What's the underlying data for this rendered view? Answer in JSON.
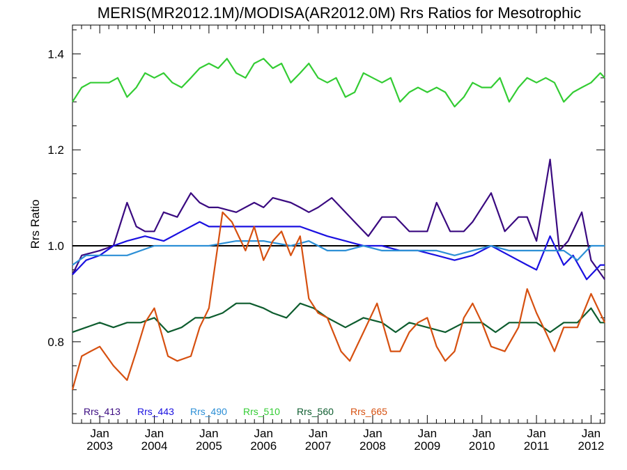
{
  "chart_data": {
    "type": "line",
    "title": "MERIS(MR2012.1M)/MODISA(AR2012.0M)  Rrs Ratios for Mesotrophic",
    "xlabel": "",
    "ylabel": "Rrs Ratio",
    "xlim": [
      2002.5,
      2012.25
    ],
    "ylim": [
      0.63,
      1.46
    ],
    "y_ticks": [
      0.8,
      1.0,
      1.2,
      1.4
    ],
    "y_tick_labels": [
      "0.8",
      "1.0",
      "1.2",
      "1.4"
    ],
    "x_ticks": [
      2003,
      2004,
      2005,
      2006,
      2007,
      2008,
      2009,
      2010,
      2011,
      2012
    ],
    "x_tick_labels": [
      {
        "month": "Jan",
        "year": "2003"
      },
      {
        "month": "Jan",
        "year": "2004"
      },
      {
        "month": "Jan",
        "year": "2005"
      },
      {
        "month": "Jan",
        "year": "2006"
      },
      {
        "month": "Jan",
        "year": "2007"
      },
      {
        "month": "Jan",
        "year": "2008"
      },
      {
        "month": "Jan",
        "year": "2009"
      },
      {
        "month": "Jan",
        "year": "2010"
      },
      {
        "month": "Jan",
        "year": "2011"
      },
      {
        "month": "Jan",
        "year": "2012"
      }
    ],
    "reference_line": 1.0,
    "grid": false,
    "legend_position": "bottom-left",
    "series": [
      {
        "name": "Rrs_413",
        "color": "#3a0a80",
        "x": [
          2002.5,
          2002.67,
          2003.0,
          2003.25,
          2003.5,
          2003.67,
          2003.83,
          2004.0,
          2004.17,
          2004.42,
          2004.67,
          2004.83,
          2005.0,
          2005.17,
          2005.5,
          2005.83,
          2006.0,
          2006.17,
          2006.5,
          2006.67,
          2006.83,
          2007.0,
          2007.25,
          2007.5,
          2007.75,
          2007.92,
          2008.17,
          2008.42,
          2008.67,
          2009.0,
          2009.17,
          2009.42,
          2009.67,
          2009.83,
          2010.17,
          2010.42,
          2010.67,
          2010.83,
          2011.0,
          2011.25,
          2011.42,
          2011.58,
          2011.83,
          2012.0,
          2012.25
        ],
        "values": [
          0.94,
          0.98,
          0.99,
          1.0,
          1.09,
          1.04,
          1.03,
          1.03,
          1.07,
          1.06,
          1.11,
          1.09,
          1.08,
          1.08,
          1.07,
          1.09,
          1.08,
          1.1,
          1.09,
          1.08,
          1.07,
          1.08,
          1.1,
          1.07,
          1.04,
          1.02,
          1.06,
          1.06,
          1.03,
          1.03,
          1.09,
          1.03,
          1.03,
          1.05,
          1.11,
          1.03,
          1.06,
          1.06,
          1.01,
          1.18,
          0.99,
          1.01,
          1.07,
          0.97,
          0.93
        ]
      },
      {
        "name": "Rrs_443",
        "color": "#1a10e0",
        "x": [
          2002.5,
          2002.75,
          2003.0,
          2003.25,
          2003.5,
          2003.83,
          2004.17,
          2004.5,
          2004.83,
          2005.0,
          2005.33,
          2005.67,
          2006.0,
          2006.33,
          2006.67,
          2006.92,
          2007.17,
          2007.5,
          2007.83,
          2008.17,
          2008.5,
          2008.83,
          2009.17,
          2009.5,
          2009.83,
          2010.17,
          2010.5,
          2010.83,
          2011.0,
          2011.25,
          2011.5,
          2011.67,
          2011.92,
          2012.17,
          2012.25
        ],
        "values": [
          0.94,
          0.97,
          0.98,
          1.0,
          1.01,
          1.02,
          1.01,
          1.03,
          1.05,
          1.04,
          1.04,
          1.04,
          1.04,
          1.04,
          1.04,
          1.03,
          1.02,
          1.01,
          1.0,
          1.0,
          0.99,
          0.99,
          0.98,
          0.97,
          0.98,
          1.0,
          0.98,
          0.96,
          0.95,
          1.02,
          0.96,
          0.98,
          0.93,
          0.96,
          0.96
        ]
      },
      {
        "name": "Rrs_490",
        "color": "#2c8fd6",
        "x": [
          2002.5,
          2002.75,
          2003.0,
          2003.5,
          2004.0,
          2004.5,
          2005.0,
          2005.5,
          2006.0,
          2006.5,
          2006.83,
          2007.17,
          2007.5,
          2007.83,
          2008.17,
          2008.5,
          2008.83,
          2009.17,
          2009.5,
          2009.83,
          2010.17,
          2010.5,
          2010.83,
          2011.17,
          2011.5,
          2011.75,
          2012.0,
          2012.25
        ],
        "values": [
          0.96,
          0.98,
          0.98,
          0.98,
          1.0,
          1.0,
          1.0,
          1.01,
          1.01,
          1.0,
          1.01,
          0.99,
          0.99,
          1.0,
          0.99,
          0.99,
          0.99,
          0.99,
          0.98,
          0.99,
          1.0,
          0.99,
          0.99,
          0.99,
          0.99,
          0.97,
          1.0,
          1.0
        ]
      },
      {
        "name": "Rrs_510",
        "color": "#33cc33",
        "x": [
          2002.5,
          2002.67,
          2002.83,
          2003.0,
          2003.17,
          2003.33,
          2003.5,
          2003.67,
          2003.83,
          2004.0,
          2004.17,
          2004.33,
          2004.5,
          2004.67,
          2004.83,
          2005.0,
          2005.17,
          2005.33,
          2005.5,
          2005.67,
          2005.83,
          2006.0,
          2006.17,
          2006.33,
          2006.5,
          2006.67,
          2006.83,
          2007.0,
          2007.17,
          2007.33,
          2007.5,
          2007.67,
          2007.83,
          2008.0,
          2008.17,
          2008.33,
          2008.5,
          2008.67,
          2008.83,
          2009.0,
          2009.17,
          2009.33,
          2009.5,
          2009.67,
          2009.83,
          2010.0,
          2010.17,
          2010.33,
          2010.5,
          2010.67,
          2010.83,
          2011.0,
          2011.17,
          2011.33,
          2011.5,
          2011.67,
          2011.83,
          2012.0,
          2012.17,
          2012.25
        ],
        "values": [
          1.3,
          1.33,
          1.34,
          1.34,
          1.34,
          1.35,
          1.31,
          1.33,
          1.36,
          1.35,
          1.36,
          1.34,
          1.33,
          1.35,
          1.37,
          1.38,
          1.37,
          1.39,
          1.36,
          1.35,
          1.38,
          1.39,
          1.37,
          1.38,
          1.34,
          1.36,
          1.38,
          1.35,
          1.34,
          1.35,
          1.31,
          1.32,
          1.36,
          1.35,
          1.34,
          1.35,
          1.3,
          1.32,
          1.33,
          1.32,
          1.33,
          1.32,
          1.29,
          1.31,
          1.34,
          1.33,
          1.33,
          1.35,
          1.3,
          1.33,
          1.35,
          1.34,
          1.35,
          1.34,
          1.3,
          1.32,
          1.33,
          1.34,
          1.36,
          1.35
        ]
      },
      {
        "name": "Rrs_560",
        "color": "#0d5c2e",
        "x": [
          2002.5,
          2002.75,
          2003.0,
          2003.25,
          2003.5,
          2003.75,
          2004.0,
          2004.25,
          2004.5,
          2004.75,
          2005.0,
          2005.25,
          2005.5,
          2005.75,
          2006.0,
          2006.17,
          2006.42,
          2006.67,
          2006.92,
          2007.17,
          2007.5,
          2007.83,
          2008.17,
          2008.42,
          2008.67,
          2009.0,
          2009.33,
          2009.67,
          2010.0,
          2010.25,
          2010.5,
          2010.75,
          2011.0,
          2011.25,
          2011.5,
          2011.75,
          2012.0,
          2012.17,
          2012.25
        ],
        "values": [
          0.82,
          0.83,
          0.84,
          0.83,
          0.84,
          0.84,
          0.85,
          0.82,
          0.83,
          0.85,
          0.85,
          0.86,
          0.88,
          0.88,
          0.87,
          0.86,
          0.85,
          0.88,
          0.87,
          0.85,
          0.83,
          0.85,
          0.84,
          0.82,
          0.84,
          0.83,
          0.82,
          0.84,
          0.84,
          0.82,
          0.84,
          0.84,
          0.84,
          0.82,
          0.84,
          0.84,
          0.87,
          0.84,
          0.84
        ]
      },
      {
        "name": "Rrs_665",
        "color": "#d65010",
        "x": [
          2002.5,
          2002.67,
          2002.83,
          2003.0,
          2003.25,
          2003.5,
          2003.67,
          2003.83,
          2004.0,
          2004.25,
          2004.42,
          2004.67,
          2004.83,
          2005.0,
          2005.25,
          2005.42,
          2005.67,
          2005.83,
          2006.0,
          2006.17,
          2006.33,
          2006.5,
          2006.67,
          2006.83,
          2007.0,
          2007.17,
          2007.42,
          2007.58,
          2007.83,
          2008.08,
          2008.33,
          2008.5,
          2008.67,
          2008.83,
          2009.0,
          2009.17,
          2009.33,
          2009.5,
          2009.67,
          2009.83,
          2010.0,
          2010.17,
          2010.42,
          2010.67,
          2010.83,
          2011.0,
          2011.17,
          2011.33,
          2011.5,
          2011.75,
          2012.0,
          2012.25
        ],
        "values": [
          0.7,
          0.77,
          0.78,
          0.79,
          0.75,
          0.72,
          0.78,
          0.84,
          0.87,
          0.77,
          0.76,
          0.77,
          0.83,
          0.87,
          1.07,
          1.05,
          0.99,
          1.04,
          0.97,
          1.01,
          1.03,
          0.98,
          1.02,
          0.89,
          0.86,
          0.85,
          0.78,
          0.76,
          0.82,
          0.88,
          0.78,
          0.78,
          0.82,
          0.84,
          0.85,
          0.79,
          0.76,
          0.78,
          0.85,
          0.88,
          0.84,
          0.79,
          0.78,
          0.83,
          0.91,
          0.86,
          0.82,
          0.78,
          0.83,
          0.83,
          0.9,
          0.84
        ]
      }
    ]
  }
}
